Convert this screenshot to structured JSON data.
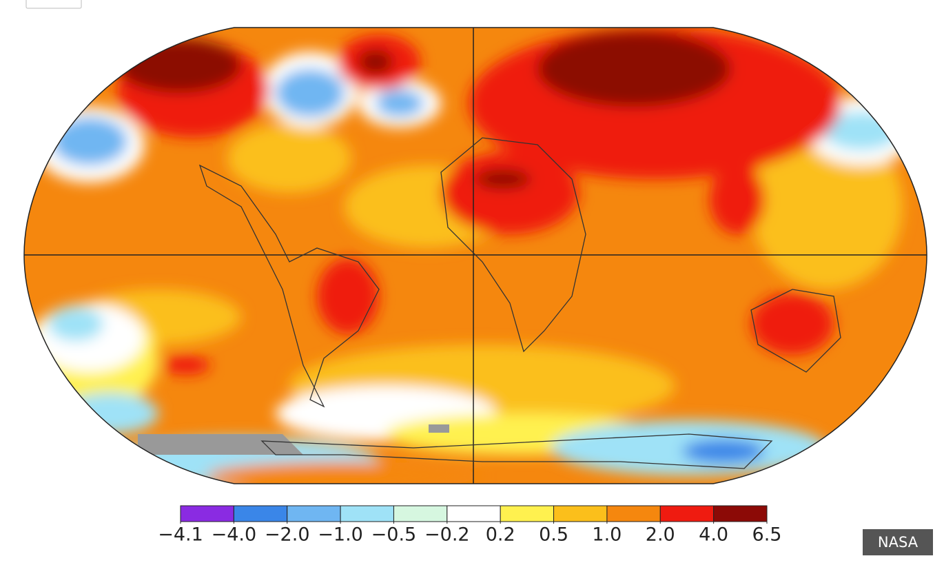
{
  "legend": {
    "ticks": [
      {
        "value": -4.1,
        "label": "−4.1"
      },
      {
        "value": -4.0,
        "label": "−4.0"
      },
      {
        "value": -2.0,
        "label": "−2.0"
      },
      {
        "value": -1.0,
        "label": "−1.0"
      },
      {
        "value": -0.5,
        "label": "−0.5"
      },
      {
        "value": -0.2,
        "label": "−0.2"
      },
      0.2,
      0.5,
      {
        "value": 1.0,
        "label": "1.0"
      },
      {
        "value": 2.0,
        "label": "2.0"
      },
      {
        "value": 4.0,
        "label": "4.0"
      },
      6.5
    ],
    "colors": [
      "#8a2be2",
      "#3a86e8",
      "#6fb6f2",
      "#9fe2f7",
      "#d6f7e0",
      "#ffffff",
      "#fff14f",
      "#fbbf1b",
      "#f5870e",
      "#ef1b10",
      "#8c0a06"
    ]
  },
  "credit": "NASA"
}
